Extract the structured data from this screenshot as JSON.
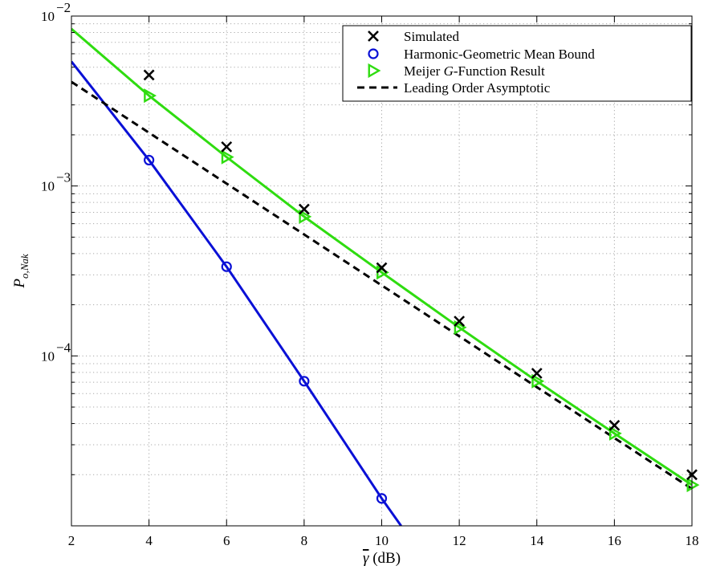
{
  "chart_data": {
    "type": "line",
    "xlabel": "γ̄ (dB)",
    "ylabel": "P_{o,Nak}",
    "x_scale": "linear",
    "y_scale": "log",
    "xlim": [
      2,
      18
    ],
    "ylim": [
      1e-05,
      0.01
    ],
    "x_ticks": [
      2,
      4,
      6,
      8,
      10,
      12,
      14,
      16,
      18
    ],
    "x_tick_labels": [
      "2",
      "4",
      "6",
      "8",
      "10",
      "12",
      "14",
      "16",
      "18"
    ],
    "y_ticks": [
      0.01,
      0.001,
      0.0001
    ],
    "y_tick_labels": [
      {
        "base": "10",
        "exp": "−2"
      },
      {
        "base": "10",
        "exp": "−3"
      },
      {
        "base": "10",
        "exp": "−4"
      }
    ],
    "grid": true,
    "legend_position": "top-right",
    "series": [
      {
        "name": "Simulated",
        "style": "markers",
        "marker": "x",
        "color": "#000000",
        "x": [
          4,
          6,
          8,
          10,
          12,
          14,
          16,
          18
        ],
        "y": [
          0.0045,
          0.0017,
          0.00073,
          0.00033,
          0.00016,
          7.9e-05,
          3.9e-05,
          2e-05
        ]
      },
      {
        "name": "Harmonic-Geometric Mean Bound",
        "style": "line+markers",
        "marker": "circle",
        "color": "#0a10d6",
        "line_x": [
          2,
          4,
          6,
          8,
          10,
          10.5
        ],
        "line_y": [
          0.0054,
          0.00142,
          0.000335,
          7.1e-05,
          1.45e-05,
          1e-05
        ],
        "marker_x": [
          4,
          6,
          8,
          10
        ],
        "marker_y": [
          0.00142,
          0.000335,
          7.1e-05,
          1.45e-05
        ]
      },
      {
        "name_pre": "Meijer ",
        "name_italic": "G",
        "name_post": "-Function Result",
        "style": "line+markers",
        "marker": "triangle-right",
        "color": "#2fdc10",
        "line_x": [
          2,
          4,
          6,
          8,
          10,
          12,
          14,
          16,
          18
        ],
        "line_y": [
          0.0084,
          0.0034,
          0.00148,
          0.00066,
          0.00031,
          0.000147,
          7.1e-05,
          3.5e-05,
          1.74e-05
        ],
        "marker_x": [
          4,
          6,
          8,
          10,
          12,
          14,
          16,
          18
        ],
        "marker_y": [
          0.0034,
          0.00148,
          0.00066,
          0.00031,
          0.000147,
          7.1e-05,
          3.5e-05,
          1.74e-05
        ]
      },
      {
        "name": "Leading Order Asymptotic",
        "style": "dashed",
        "color": "#000000",
        "x": [
          2,
          18
        ],
        "y": [
          0.0041,
          1.65e-05
        ]
      }
    ]
  }
}
